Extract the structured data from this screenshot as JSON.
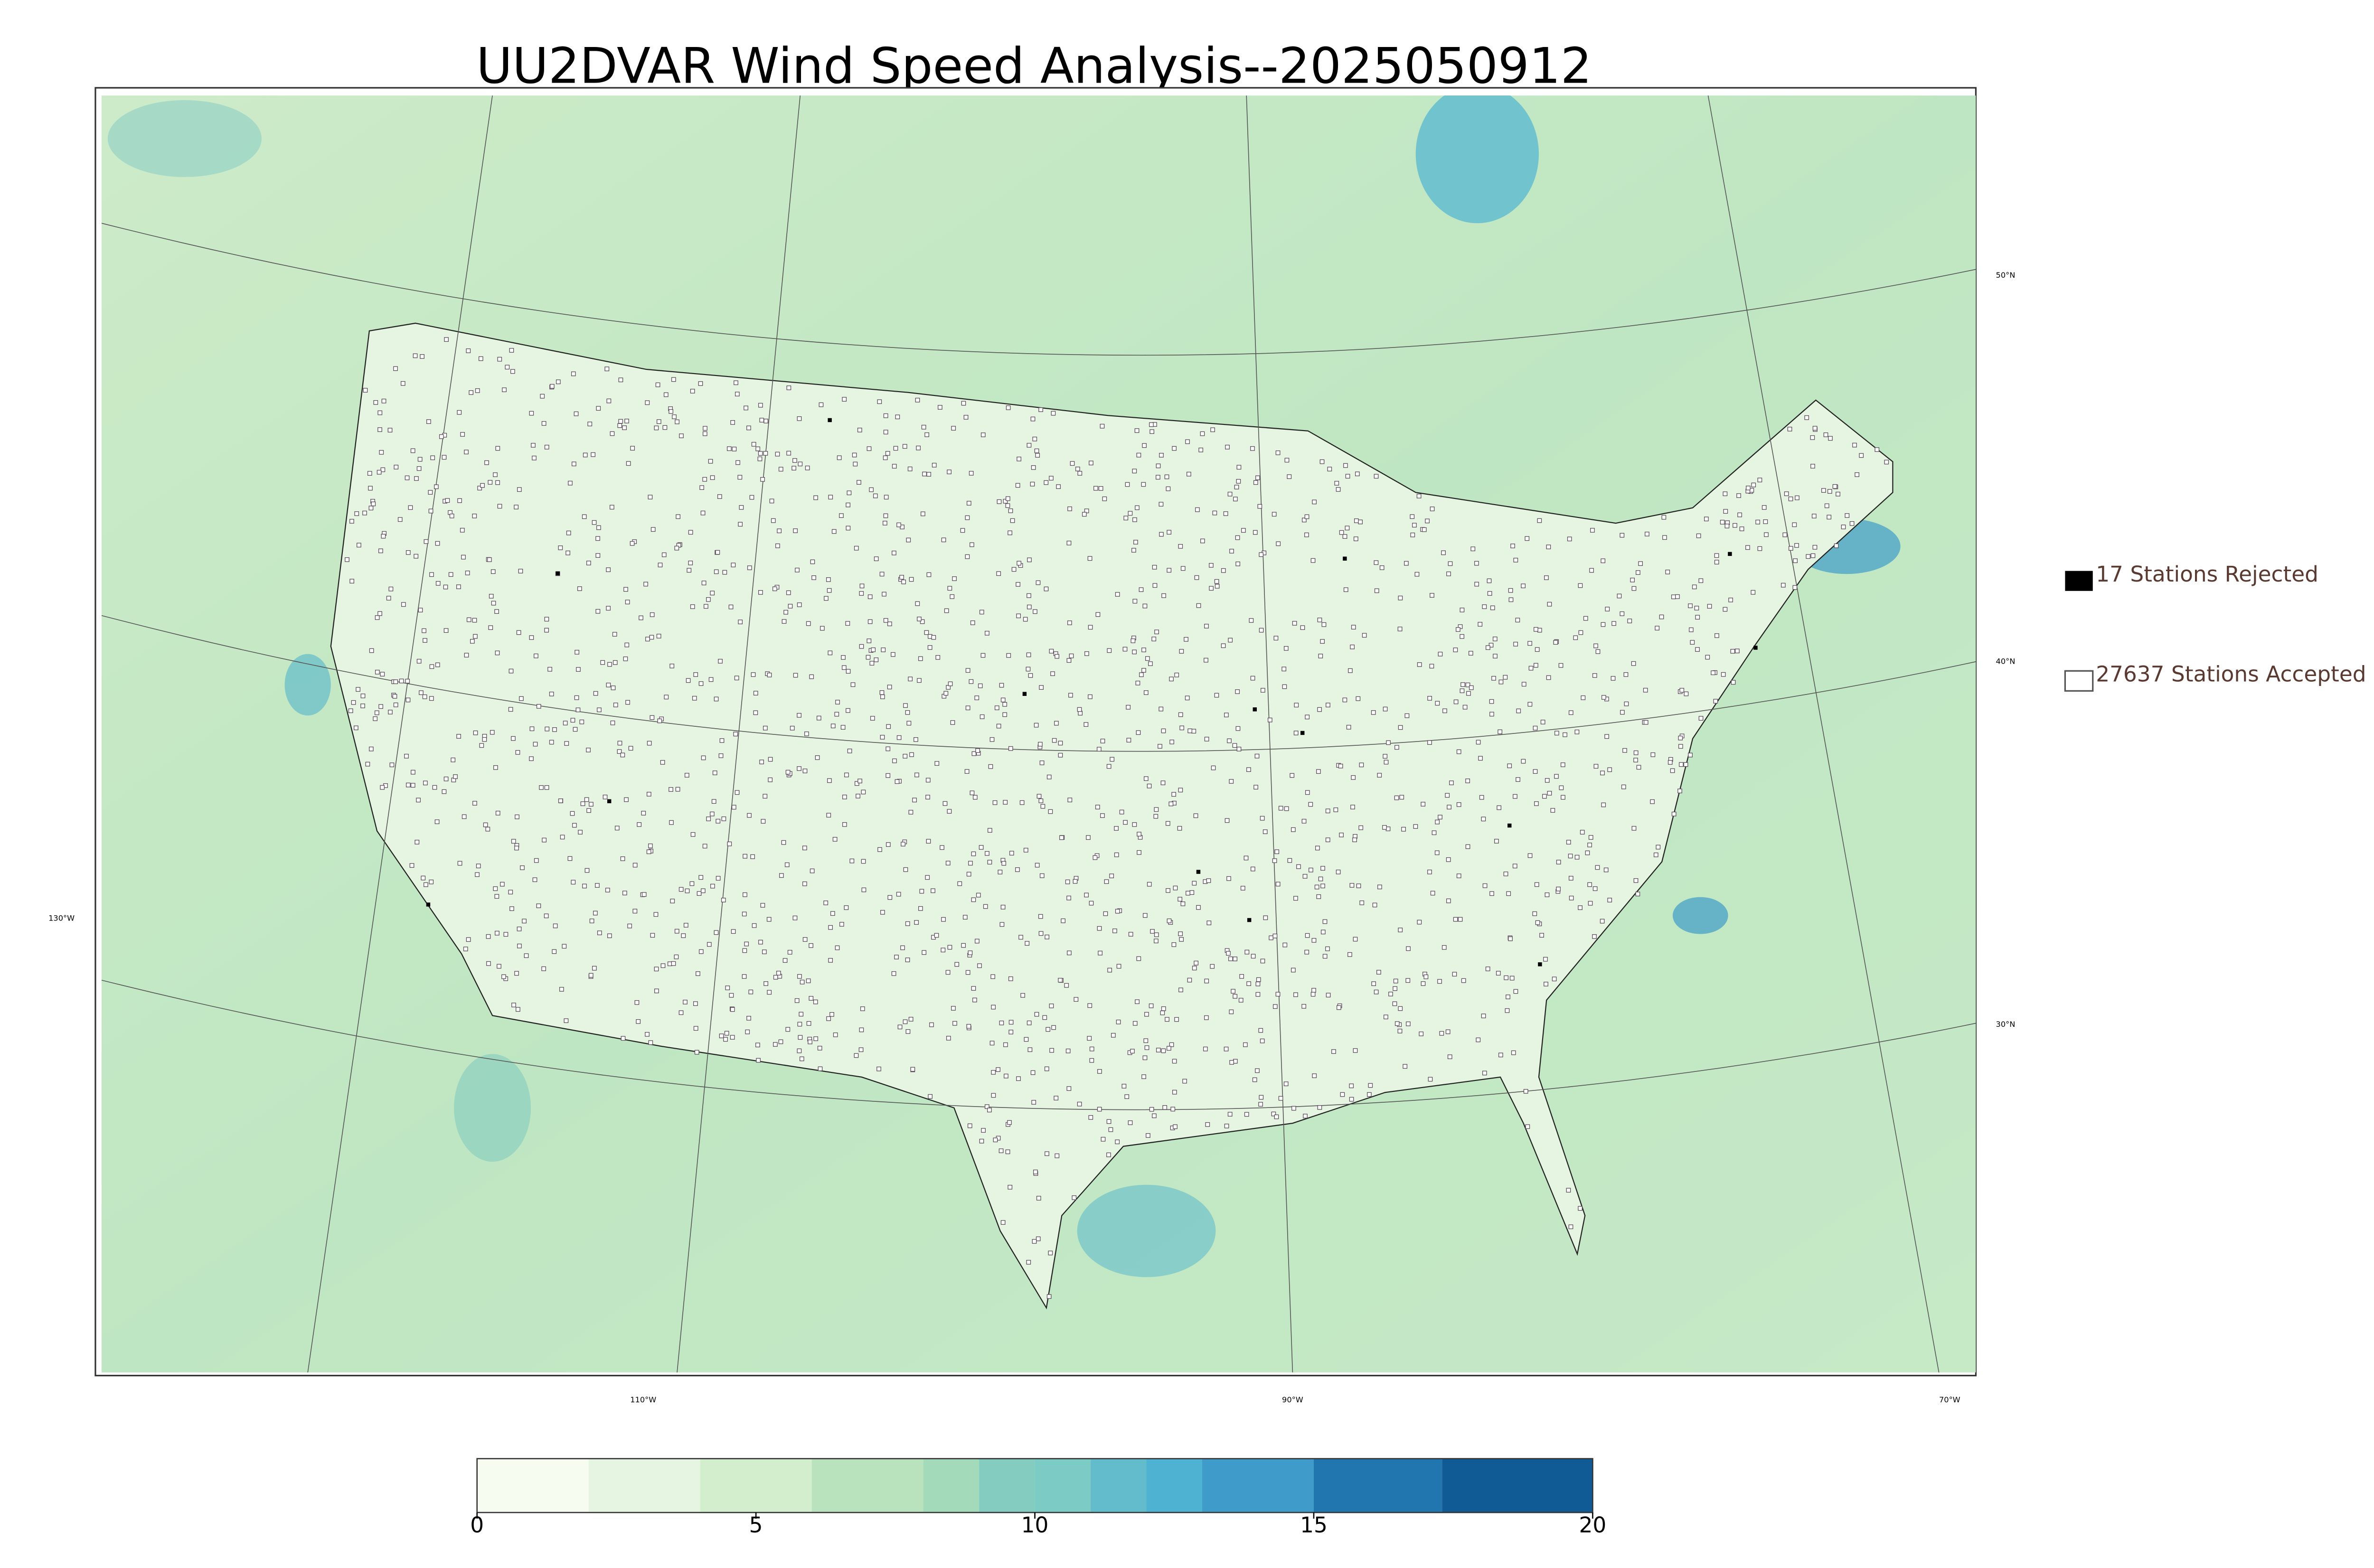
{
  "title": "UU2DVAR Wind Speed Analysis--2025050912",
  "legend": {
    "rejected": "17 Stations Rejected",
    "accepted": "27637 Stations Accepted"
  },
  "graticule": {
    "lat_labels": [
      "50°N",
      "40°N",
      "30°N"
    ],
    "lon_labels": [
      "130°W",
      "110°W",
      "90°W",
      "70°W"
    ]
  },
  "colorbar": {
    "lim": [
      0,
      20
    ],
    "ticks": [
      0,
      5,
      10,
      15,
      20
    ],
    "levels": [
      0,
      2,
      4,
      6,
      8,
      9,
      10,
      11,
      12,
      13,
      15,
      17.3,
      20
    ],
    "colors": [
      "#f7fcf0",
      "#e6f5e1",
      "#d3eecd",
      "#b9e3bc",
      "#a3dab9",
      "#84ccc0",
      "#7ccbc5",
      "#62bccb",
      "#4eb3d3",
      "#3f9bc9",
      "#2276b0",
      "#105a96"
    ]
  }
}
